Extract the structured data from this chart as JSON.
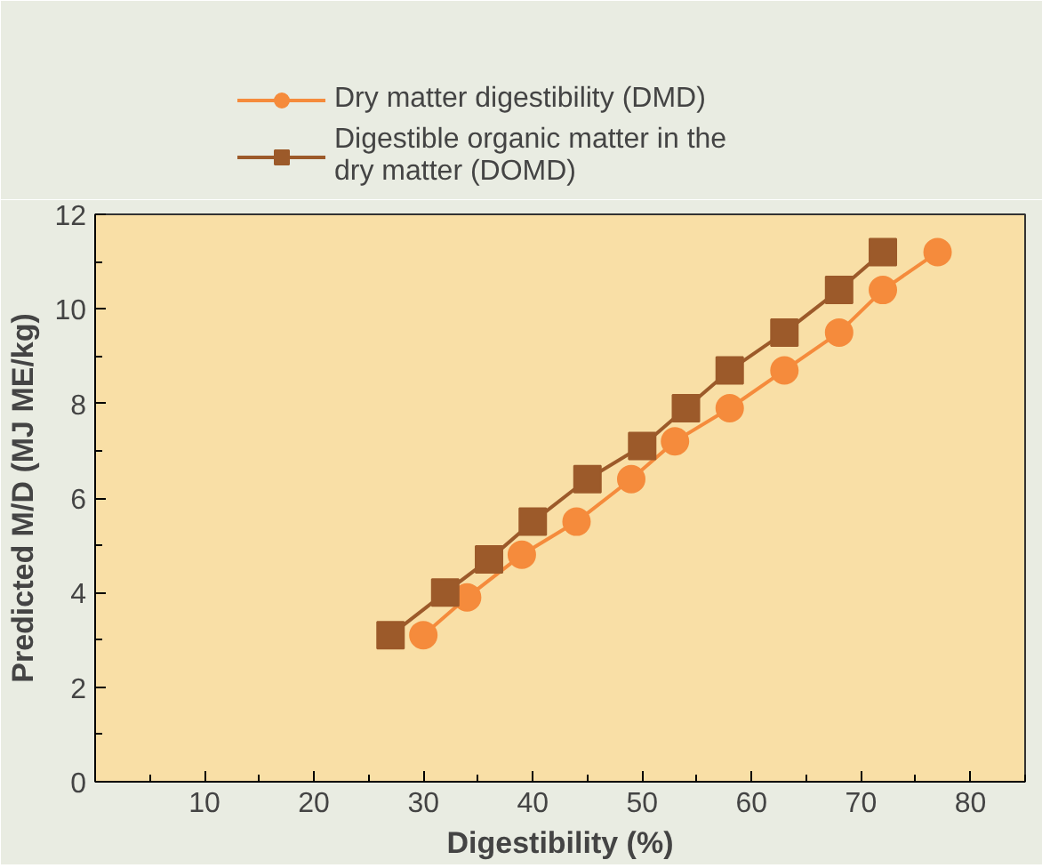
{
  "chart_data": {
    "type": "line",
    "xlabel": "Digestibility (%)",
    "ylabel": "Predicted M/D (MJ ME/kg)",
    "xlim": [
      0,
      85
    ],
    "xticks": [
      10,
      20,
      30,
      40,
      50,
      60,
      70,
      80
    ],
    "ylim": [
      0,
      12
    ],
    "yticks": [
      0,
      2,
      4,
      6,
      8,
      10,
      12
    ],
    "grid": false,
    "legend": "top",
    "marker": "circle",
    "line_style": "solid",
    "series": [
      {
        "name": "Dry matter digestibility (DMD)",
        "color": "#f58b3c",
        "x": [
          30,
          34,
          39,
          44,
          49,
          53,
          58,
          63,
          68,
          72,
          77
        ],
        "values": [
          3.1,
          3.9,
          4.8,
          5.5,
          6.4,
          7.2,
          7.9,
          8.7,
          9.5,
          10.4,
          11.2
        ]
      },
      {
        "name": "Digestible organic matter in the dry matter (DOMD)",
        "color": "#9c5a2a",
        "marker": "square",
        "x": [
          27,
          32,
          36,
          40,
          45,
          50,
          54,
          58,
          63,
          68,
          72
        ],
        "values": [
          3.1,
          4.0,
          4.7,
          5.5,
          6.4,
          7.1,
          7.9,
          8.7,
          9.5,
          10.4,
          11.2
        ]
      }
    ]
  }
}
